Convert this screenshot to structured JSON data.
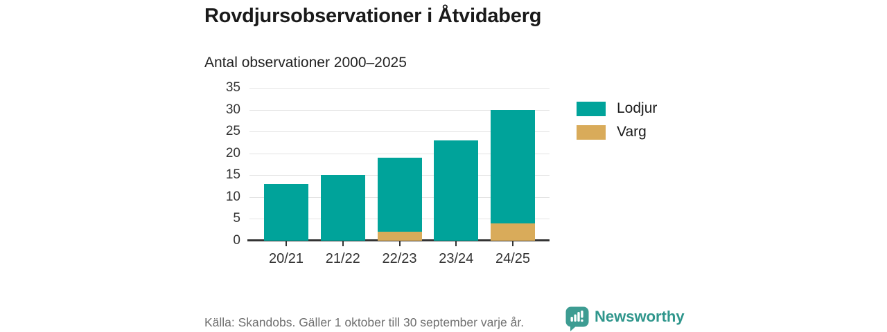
{
  "title": "Rovdjursobservationer i Åtvidaberg",
  "subtitle": "Antal observationer 2000–2025",
  "legend": {
    "position": "right",
    "items": [
      "Lodjur",
      "Varg"
    ]
  },
  "footer": {
    "source": "Källa: Skandobs. Gäller 1 oktober till 30 september varje år.",
    "brand": "Newsworthy"
  },
  "colors": {
    "lodjur": "#00a39a",
    "varg": "#d9ab5a",
    "title_text": "#1a1a1a",
    "axis_text": "#333333",
    "gridline": "#e3e3e3",
    "axis_line": "#333333",
    "footer_text": "#6f6f6f",
    "brand_teal": "#3d9c92"
  },
  "chart_data": {
    "type": "bar",
    "stacked": true,
    "categories": [
      "20/21",
      "21/22",
      "22/23",
      "23/24",
      "24/25"
    ],
    "series": [
      {
        "name": "Lodjur",
        "color": "#00a39a",
        "values": [
          13,
          15,
          17,
          23,
          26
        ]
      },
      {
        "name": "Varg",
        "color": "#d9ab5a",
        "values": [
          0,
          0,
          2,
          0,
          4
        ]
      }
    ],
    "stack_totals": [
      13,
      15,
      19,
      23,
      30
    ],
    "title": "Rovdjursobservationer i Åtvidaberg",
    "subtitle": "Antal observationer 2000–2025",
    "xlabel": "",
    "ylabel": "",
    "yticks": [
      0,
      5,
      10,
      15,
      20,
      25,
      30,
      35
    ],
    "ylim": [
      0,
      35
    ],
    "grid": true,
    "legend_position": "right"
  }
}
